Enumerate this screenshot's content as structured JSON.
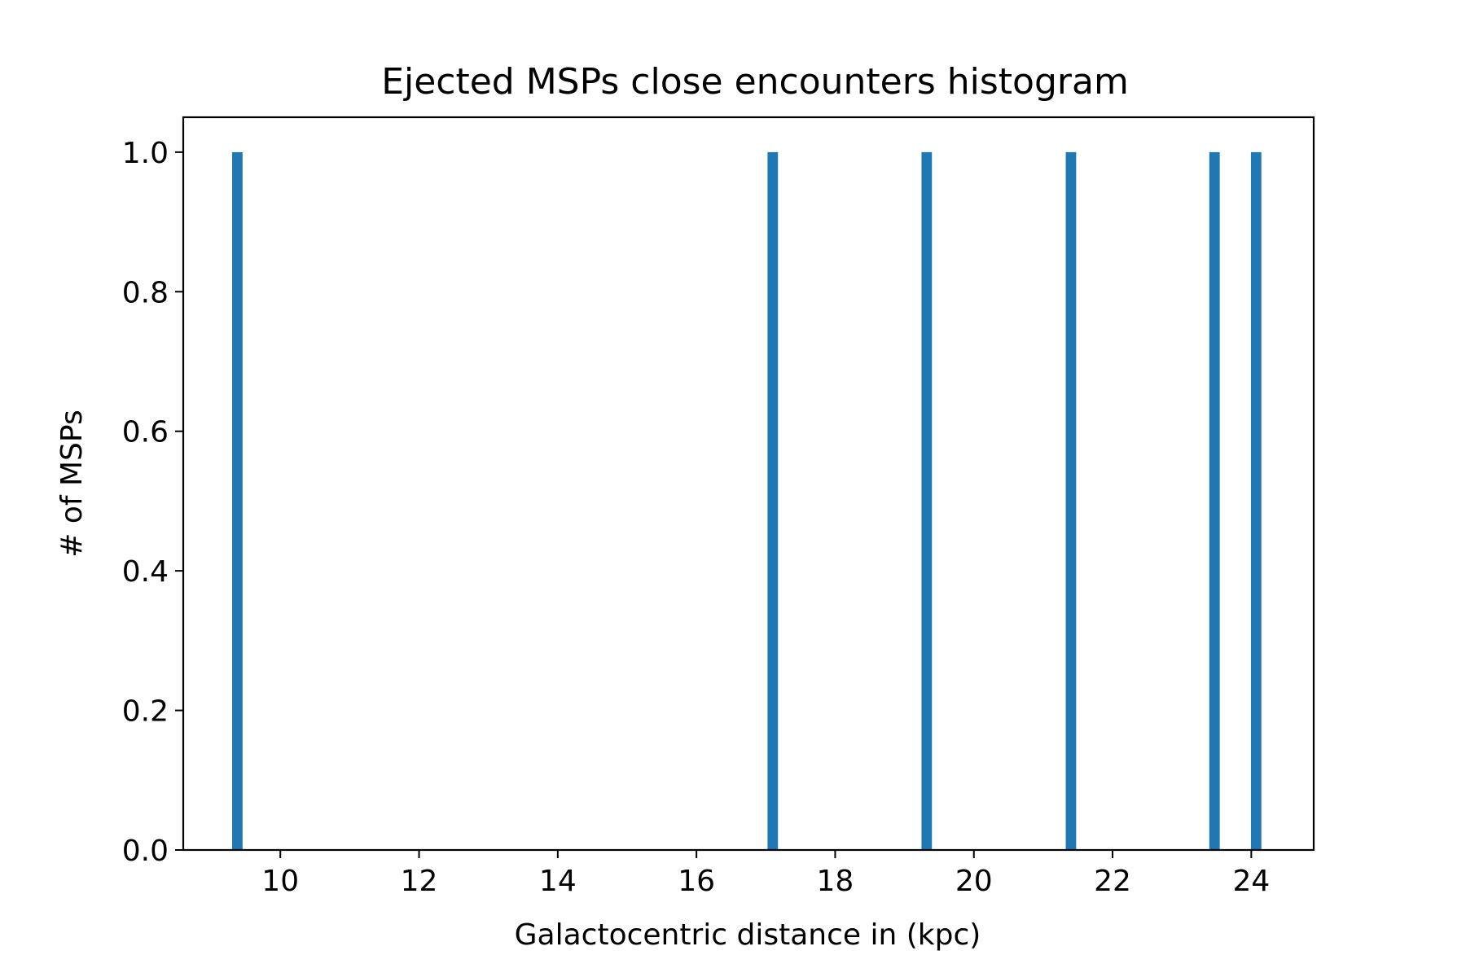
{
  "chart_data": {
    "type": "bar",
    "title": "Ejected MSPs close encounters histogram",
    "xlabel": "Galactocentric distance in (kpc)",
    "ylabel": "# of MSPs",
    "xlim": [
      8.6,
      24.9
    ],
    "ylim": [
      0.0,
      1.05
    ],
    "xticks": [
      10,
      12,
      14,
      16,
      18,
      20,
      22,
      24
    ],
    "xtick_labels": [
      "10",
      "12",
      "14",
      "16",
      "18",
      "20",
      "22",
      "24"
    ],
    "yticks": [
      0.0,
      0.2,
      0.4,
      0.6,
      0.8,
      1.0
    ],
    "ytick_labels": [
      "0.0",
      "0.2",
      "0.4",
      "0.6",
      "0.8",
      "1.0"
    ],
    "bar_width": 0.15,
    "grid": false,
    "color": "#1f77b4",
    "bars": [
      {
        "x": 9.38,
        "value": 1.0
      },
      {
        "x": 17.1,
        "value": 1.0
      },
      {
        "x": 19.32,
        "value": 1.0
      },
      {
        "x": 21.4,
        "value": 1.0
      },
      {
        "x": 23.47,
        "value": 1.0
      },
      {
        "x": 24.07,
        "value": 1.0
      }
    ]
  }
}
